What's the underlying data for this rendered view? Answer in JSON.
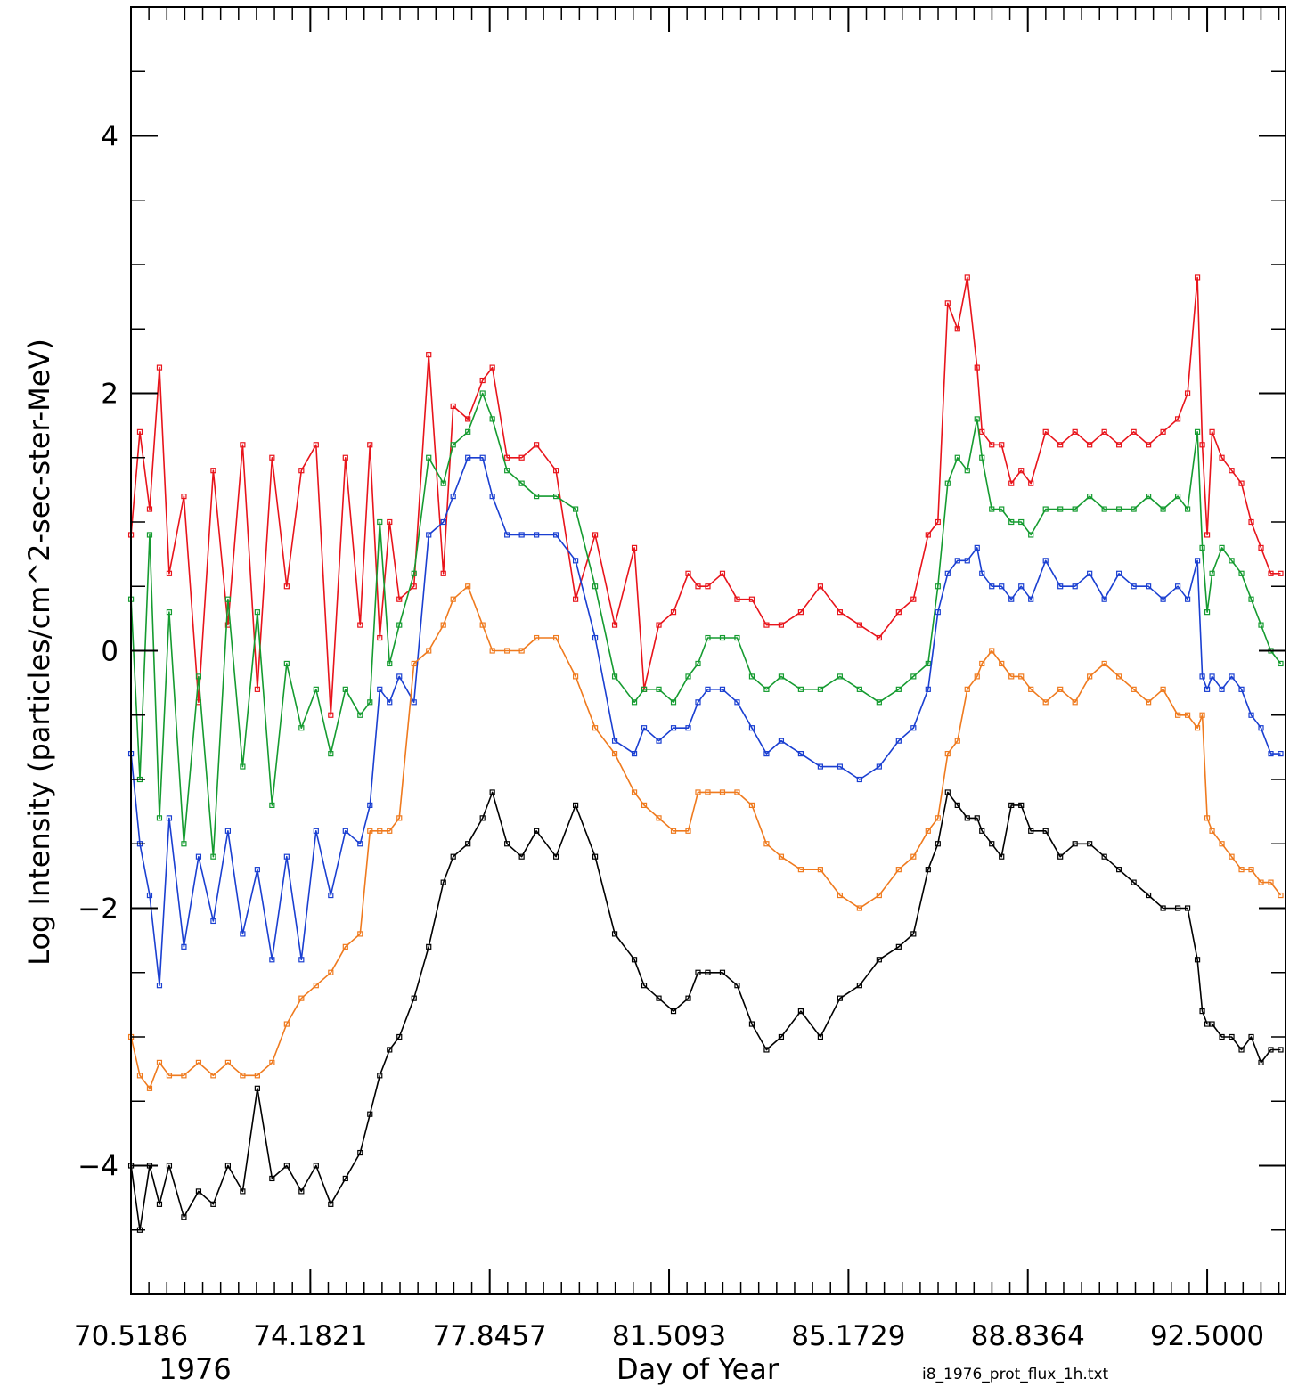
{
  "chart_data": {
    "type": "line",
    "title": "",
    "xlabel": "Day of Year",
    "ylabel": "Log Intensity (particles/cm^2-sec-ster-MeV)",
    "year_label": "1976",
    "source_label": "i8_1976_prot_flux_1h.txt",
    "xlim": [
      70.5186,
      94.1
    ],
    "ylim": [
      -5,
      5
    ],
    "x_tick_labels": [
      "70.5186",
      "74.1821",
      "77.8457",
      "81.5093",
      "85.1729",
      "88.8364",
      "92.5000"
    ],
    "x_tick_values": [
      70.5186,
      74.1821,
      77.8457,
      81.5093,
      85.1729,
      88.8364,
      92.5
    ],
    "y_ticks": [
      -4,
      -2,
      0,
      2,
      4
    ],
    "grid": false,
    "series": [
      {
        "color": "#e8141b",
        "x": [
          70.52,
          70.7,
          70.9,
          71.1,
          71.3,
          71.6,
          71.9,
          72.2,
          72.5,
          72.8,
          73.1,
          73.4,
          73.7,
          74.0,
          74.3,
          74.6,
          74.9,
          75.2,
          75.4,
          75.6,
          75.8,
          76.0,
          76.3,
          76.6,
          76.9,
          77.1,
          77.4,
          77.7,
          77.9,
          78.2,
          78.5,
          78.8,
          79.2,
          79.6,
          80.0,
          80.4,
          80.8,
          81.0,
          81.3,
          81.6,
          81.9,
          82.1,
          82.3,
          82.6,
          82.9,
          83.2,
          83.5,
          83.8,
          84.2,
          84.6,
          85.0,
          85.4,
          85.8,
          86.2,
          86.5,
          86.8,
          87.0,
          87.2,
          87.4,
          87.6,
          87.8,
          87.9,
          88.1,
          88.3,
          88.5,
          88.7,
          88.9,
          89.2,
          89.5,
          89.8,
          90.1,
          90.4,
          90.7,
          91.0,
          91.3,
          91.6,
          91.9,
          92.1,
          92.3,
          92.4,
          92.5,
          92.6,
          92.8,
          93.0,
          93.2,
          93.4,
          93.6,
          93.8,
          94.0
        ],
        "y": [
          0.9,
          1.7,
          1.1,
          2.2,
          0.6,
          1.2,
          -0.4,
          1.4,
          0.2,
          1.6,
          -0.3,
          1.5,
          0.5,
          1.4,
          1.6,
          -0.5,
          1.5,
          0.2,
          1.6,
          0.1,
          1.0,
          0.4,
          0.5,
          2.3,
          0.6,
          1.9,
          1.8,
          2.1,
          2.2,
          1.5,
          1.5,
          1.6,
          1.4,
          0.4,
          0.9,
          0.2,
          0.8,
          -0.3,
          0.2,
          0.3,
          0.6,
          0.5,
          0.5,
          0.6,
          0.4,
          0.4,
          0.2,
          0.2,
          0.3,
          0.5,
          0.3,
          0.2,
          0.1,
          0.3,
          0.4,
          0.9,
          1.0,
          2.7,
          2.5,
          2.9,
          2.2,
          1.7,
          1.6,
          1.6,
          1.3,
          1.4,
          1.3,
          1.7,
          1.6,
          1.7,
          1.6,
          1.7,
          1.6,
          1.7,
          1.6,
          1.7,
          1.8,
          2.0,
          2.9,
          1.6,
          0.9,
          1.7,
          1.5,
          1.4,
          1.3,
          1.0,
          0.8,
          0.6,
          0.6
        ]
      },
      {
        "color": "#159b30",
        "x": [
          70.52,
          70.7,
          70.9,
          71.1,
          71.3,
          71.6,
          71.9,
          72.2,
          72.5,
          72.8,
          73.1,
          73.4,
          73.7,
          74.0,
          74.3,
          74.6,
          74.9,
          75.2,
          75.4,
          75.6,
          75.8,
          76.0,
          76.3,
          76.6,
          76.9,
          77.1,
          77.4,
          77.7,
          77.9,
          78.2,
          78.5,
          78.8,
          79.2,
          79.6,
          80.0,
          80.4,
          80.8,
          81.0,
          81.3,
          81.6,
          81.9,
          82.1,
          82.3,
          82.6,
          82.9,
          83.2,
          83.5,
          83.8,
          84.2,
          84.6,
          85.0,
          85.4,
          85.8,
          86.2,
          86.5,
          86.8,
          87.0,
          87.2,
          87.4,
          87.6,
          87.8,
          87.9,
          88.1,
          88.3,
          88.5,
          88.7,
          88.9,
          89.2,
          89.5,
          89.8,
          90.1,
          90.4,
          90.7,
          91.0,
          91.3,
          91.6,
          91.9,
          92.1,
          92.3,
          92.4,
          92.5,
          92.6,
          92.8,
          93.0,
          93.2,
          93.4,
          93.6,
          93.8,
          94.0
        ],
        "y": [
          0.4,
          -1.0,
          0.9,
          -1.3,
          0.3,
          -1.5,
          -0.2,
          -1.6,
          0.4,
          -0.9,
          0.3,
          -1.2,
          -0.1,
          -0.6,
          -0.3,
          -0.8,
          -0.3,
          -0.5,
          -0.4,
          1.0,
          -0.1,
          0.2,
          0.6,
          1.5,
          1.3,
          1.6,
          1.7,
          2.0,
          1.8,
          1.4,
          1.3,
          1.2,
          1.2,
          1.1,
          0.5,
          -0.2,
          -0.4,
          -0.3,
          -0.3,
          -0.4,
          -0.2,
          -0.1,
          0.1,
          0.1,
          0.1,
          -0.2,
          -0.3,
          -0.2,
          -0.3,
          -0.3,
          -0.2,
          -0.3,
          -0.4,
          -0.3,
          -0.2,
          -0.1,
          0.5,
          1.3,
          1.5,
          1.4,
          1.8,
          1.5,
          1.1,
          1.1,
          1.0,
          1.0,
          0.9,
          1.1,
          1.1,
          1.1,
          1.2,
          1.1,
          1.1,
          1.1,
          1.2,
          1.1,
          1.2,
          1.1,
          1.7,
          0.8,
          0.3,
          0.6,
          0.8,
          0.7,
          0.6,
          0.4,
          0.2,
          0.0,
          -0.1
        ]
      },
      {
        "color": "#1a3fd1",
        "x": [
          70.52,
          70.7,
          70.9,
          71.1,
          71.3,
          71.6,
          71.9,
          72.2,
          72.5,
          72.8,
          73.1,
          73.4,
          73.7,
          74.0,
          74.3,
          74.6,
          74.9,
          75.2,
          75.4,
          75.6,
          75.8,
          76.0,
          76.3,
          76.6,
          76.9,
          77.1,
          77.4,
          77.7,
          77.9,
          78.2,
          78.5,
          78.8,
          79.2,
          79.6,
          80.0,
          80.4,
          80.8,
          81.0,
          81.3,
          81.6,
          81.9,
          82.1,
          82.3,
          82.6,
          82.9,
          83.2,
          83.5,
          83.8,
          84.2,
          84.6,
          85.0,
          85.4,
          85.8,
          86.2,
          86.5,
          86.8,
          87.0,
          87.2,
          87.4,
          87.6,
          87.8,
          87.9,
          88.1,
          88.3,
          88.5,
          88.7,
          88.9,
          89.2,
          89.5,
          89.8,
          90.1,
          90.4,
          90.7,
          91.0,
          91.3,
          91.6,
          91.9,
          92.1,
          92.3,
          92.4,
          92.5,
          92.6,
          92.8,
          93.0,
          93.2,
          93.4,
          93.6,
          93.8,
          94.0
        ],
        "y": [
          -0.8,
          -1.5,
          -1.9,
          -2.6,
          -1.3,
          -2.3,
          -1.6,
          -2.1,
          -1.4,
          -2.2,
          -1.7,
          -2.4,
          -1.6,
          -2.4,
          -1.4,
          -1.9,
          -1.4,
          -1.5,
          -1.2,
          -0.3,
          -0.4,
          -0.2,
          -0.4,
          0.9,
          1.0,
          1.2,
          1.5,
          1.5,
          1.2,
          0.9,
          0.9,
          0.9,
          0.9,
          0.7,
          0.1,
          -0.7,
          -0.8,
          -0.6,
          -0.7,
          -0.6,
          -0.6,
          -0.4,
          -0.3,
          -0.3,
          -0.4,
          -0.6,
          -0.8,
          -0.7,
          -0.8,
          -0.9,
          -0.9,
          -1.0,
          -0.9,
          -0.7,
          -0.6,
          -0.3,
          0.3,
          0.6,
          0.7,
          0.7,
          0.8,
          0.6,
          0.5,
          0.5,
          0.4,
          0.5,
          0.4,
          0.7,
          0.5,
          0.5,
          0.6,
          0.4,
          0.6,
          0.5,
          0.5,
          0.4,
          0.5,
          0.4,
          0.7,
          -0.2,
          -0.3,
          -0.2,
          -0.3,
          -0.2,
          -0.3,
          -0.5,
          -0.6,
          -0.8,
          -0.8
        ]
      },
      {
        "color": "#ef7a1e",
        "x": [
          70.52,
          70.7,
          70.9,
          71.1,
          71.3,
          71.6,
          71.9,
          72.2,
          72.5,
          72.8,
          73.1,
          73.4,
          73.7,
          74.0,
          74.3,
          74.6,
          74.9,
          75.2,
          75.4,
          75.6,
          75.8,
          76.0,
          76.3,
          76.6,
          76.9,
          77.1,
          77.4,
          77.7,
          77.9,
          78.2,
          78.5,
          78.8,
          79.2,
          79.6,
          80.0,
          80.4,
          80.8,
          81.0,
          81.3,
          81.6,
          81.9,
          82.1,
          82.3,
          82.6,
          82.9,
          83.2,
          83.5,
          83.8,
          84.2,
          84.6,
          85.0,
          85.4,
          85.8,
          86.2,
          86.5,
          86.8,
          87.0,
          87.2,
          87.4,
          87.6,
          87.8,
          87.9,
          88.1,
          88.3,
          88.5,
          88.7,
          88.9,
          89.2,
          89.5,
          89.8,
          90.1,
          90.4,
          90.7,
          91.0,
          91.3,
          91.6,
          91.9,
          92.1,
          92.3,
          92.4,
          92.5,
          92.6,
          92.8,
          93.0,
          93.2,
          93.4,
          93.6,
          93.8,
          94.0
        ],
        "y": [
          -3.0,
          -3.3,
          -3.4,
          -3.2,
          -3.3,
          -3.3,
          -3.2,
          -3.3,
          -3.2,
          -3.3,
          -3.3,
          -3.2,
          -2.9,
          -2.7,
          -2.6,
          -2.5,
          -2.3,
          -2.2,
          -1.4,
          -1.4,
          -1.4,
          -1.3,
          -0.1,
          0.0,
          0.2,
          0.4,
          0.5,
          0.2,
          0.0,
          0.0,
          0.0,
          0.1,
          0.1,
          -0.2,
          -0.6,
          -0.8,
          -1.1,
          -1.2,
          -1.3,
          -1.4,
          -1.4,
          -1.1,
          -1.1,
          -1.1,
          -1.1,
          -1.2,
          -1.5,
          -1.6,
          -1.7,
          -1.7,
          -1.9,
          -2.0,
          -1.9,
          -1.7,
          -1.6,
          -1.4,
          -1.3,
          -0.8,
          -0.7,
          -0.3,
          -0.2,
          -0.1,
          0.0,
          -0.1,
          -0.2,
          -0.2,
          -0.3,
          -0.4,
          -0.3,
          -0.4,
          -0.2,
          -0.1,
          -0.2,
          -0.3,
          -0.4,
          -0.3,
          -0.5,
          -0.5,
          -0.6,
          -0.5,
          -1.3,
          -1.4,
          -1.5,
          -1.6,
          -1.7,
          -1.7,
          -1.8,
          -1.8,
          -1.9
        ]
      },
      {
        "color": "#000000",
        "x": [
          70.52,
          70.7,
          70.9,
          71.1,
          71.3,
          71.6,
          71.9,
          72.2,
          72.5,
          72.8,
          73.1,
          73.4,
          73.7,
          74.0,
          74.3,
          74.6,
          74.9,
          75.2,
          75.4,
          75.6,
          75.8,
          76.0,
          76.3,
          76.6,
          76.9,
          77.1,
          77.4,
          77.7,
          77.9,
          78.2,
          78.5,
          78.8,
          79.2,
          79.6,
          80.0,
          80.4,
          80.8,
          81.0,
          81.3,
          81.6,
          81.9,
          82.1,
          82.3,
          82.6,
          82.9,
          83.2,
          83.5,
          83.8,
          84.2,
          84.6,
          85.0,
          85.4,
          85.8,
          86.2,
          86.5,
          86.8,
          87.0,
          87.2,
          87.4,
          87.6,
          87.8,
          87.9,
          88.1,
          88.3,
          88.5,
          88.7,
          88.9,
          89.2,
          89.5,
          89.8,
          90.1,
          90.4,
          90.7,
          91.0,
          91.3,
          91.6,
          91.9,
          92.1,
          92.3,
          92.4,
          92.5,
          92.6,
          92.8,
          93.0,
          93.2,
          93.4,
          93.6,
          93.8,
          94.0
        ],
        "y": [
          -4.0,
          -4.5,
          -4.0,
          -4.3,
          -4.0,
          -4.4,
          -4.2,
          -4.3,
          -4.0,
          -4.2,
          -3.4,
          -4.1,
          -4.0,
          -4.2,
          -4.0,
          -4.3,
          -4.1,
          -3.9,
          -3.6,
          -3.3,
          -3.1,
          -3.0,
          -2.7,
          -2.3,
          -1.8,
          -1.6,
          -1.5,
          -1.3,
          -1.1,
          -1.5,
          -1.6,
          -1.4,
          -1.6,
          -1.2,
          -1.6,
          -2.2,
          -2.4,
          -2.6,
          -2.7,
          -2.8,
          -2.7,
          -2.5,
          -2.5,
          -2.5,
          -2.6,
          -2.9,
          -3.1,
          -3.0,
          -2.8,
          -3.0,
          -2.7,
          -2.6,
          -2.4,
          -2.3,
          -2.2,
          -1.7,
          -1.5,
          -1.1,
          -1.2,
          -1.3,
          -1.3,
          -1.4,
          -1.5,
          -1.6,
          -1.2,
          -1.2,
          -1.4,
          -1.4,
          -1.6,
          -1.5,
          -1.5,
          -1.6,
          -1.7,
          -1.8,
          -1.9,
          -2.0,
          -2.0,
          -2.0,
          -2.4,
          -2.8,
          -2.9,
          -2.9,
          -3.0,
          -3.0,
          -3.1,
          -3.0,
          -3.2,
          -3.1,
          -3.1
        ]
      }
    ]
  }
}
